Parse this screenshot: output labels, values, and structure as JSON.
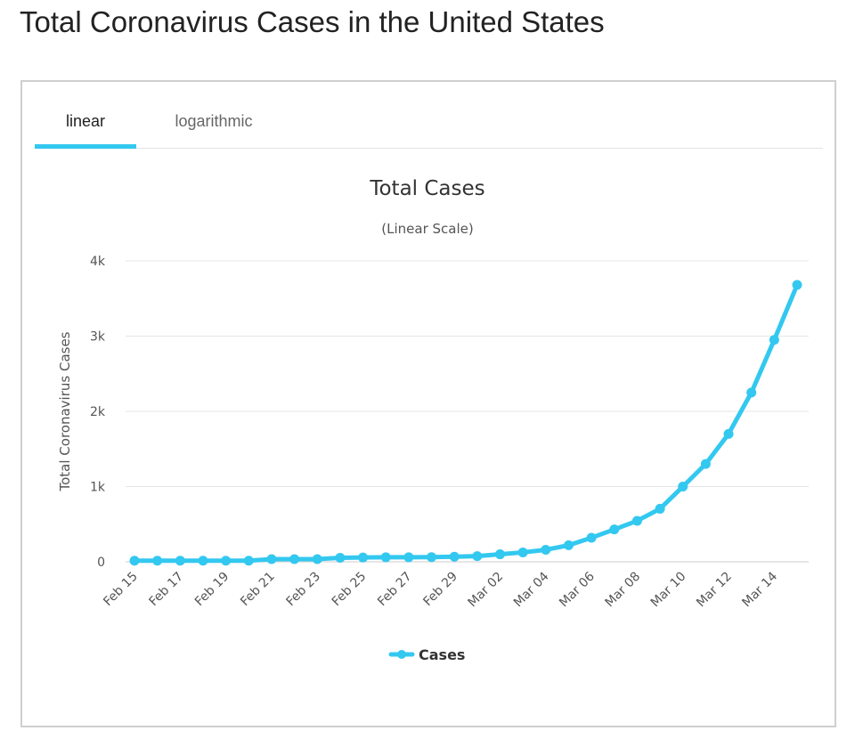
{
  "page": {
    "title": "Total Coronavirus Cases in the United States"
  },
  "tabs": [
    {
      "label": "linear",
      "active": true
    },
    {
      "label": "logarithmic",
      "active": false
    }
  ],
  "colors": {
    "series": "#33c8f0",
    "text": "#333333",
    "grid": "#e6e6e6"
  },
  "chart_data": {
    "type": "line",
    "title": "Total Cases",
    "subtitle": "(Linear Scale)",
    "xlabel": "",
    "ylabel": "Total Coronavirus Cases",
    "ylim": [
      0,
      4000
    ],
    "yticks": [
      0,
      1000,
      2000,
      3000,
      4000
    ],
    "ytick_labels": [
      "0",
      "1k",
      "2k",
      "3k",
      "4k"
    ],
    "grid": true,
    "legend": "bottom-center",
    "x": [
      "Feb 15",
      "Feb 16",
      "Feb 17",
      "Feb 18",
      "Feb 19",
      "Feb 20",
      "Feb 21",
      "Feb 22",
      "Feb 23",
      "Feb 24",
      "Feb 25",
      "Feb 26",
      "Feb 27",
      "Feb 28",
      "Feb 29",
      "Mar 01",
      "Mar 02",
      "Mar 03",
      "Mar 04",
      "Mar 05",
      "Mar 06",
      "Mar 07",
      "Mar 08",
      "Mar 09",
      "Mar 10",
      "Mar 11",
      "Mar 12",
      "Mar 13",
      "Mar 14",
      "Mar 15"
    ],
    "xtick_labels": [
      "Feb 15",
      "Feb 17",
      "Feb 19",
      "Feb 21",
      "Feb 23",
      "Feb 25",
      "Feb 27",
      "Feb 29",
      "Mar 02",
      "Mar 04",
      "Mar 06",
      "Mar 08",
      "Mar 10",
      "Mar 12",
      "Mar 14"
    ],
    "series": [
      {
        "name": "Cases",
        "values": [
          15,
          15,
          15,
          15,
          15,
          15,
          35,
          35,
          35,
          53,
          57,
          60,
          60,
          62,
          68,
          75,
          100,
          125,
          160,
          220,
          320,
          430,
          545,
          705,
          1000,
          1300,
          1700,
          2250,
          2950,
          3680
        ]
      }
    ]
  }
}
